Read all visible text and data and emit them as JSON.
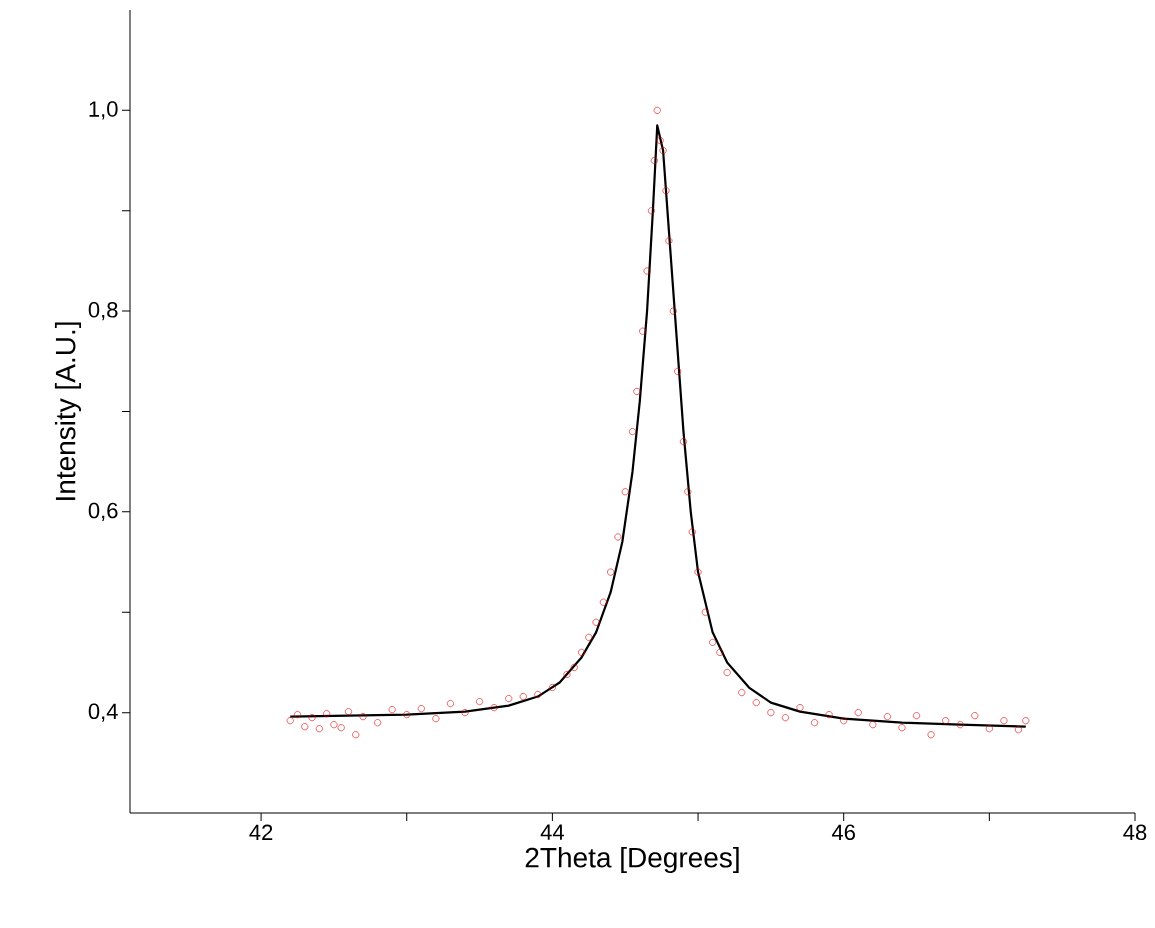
{
  "chart_data": {
    "type": "scatter",
    "xlabel": "2Theta [Degrees]",
    "ylabel": "Intensity [A.U.]",
    "xlim": [
      41.1,
      48
    ],
    "ylim": [
      0.3,
      1.1
    ],
    "xticks": [
      42,
      {
        "value": 43,
        "label": null
      },
      44,
      {
        "value": 45,
        "label": null
      },
      46,
      {
        "value": 47,
        "label": null
      },
      48
    ],
    "yticks": [
      {
        "value": 0.4,
        "label": "0,4"
      },
      {
        "value": 0.5,
        "label": null
      },
      {
        "value": 0.6,
        "label": "0,6"
      },
      {
        "value": 0.7,
        "label": null
      },
      {
        "value": 0.8,
        "label": "0,8"
      },
      {
        "value": 0.9,
        "label": null
      },
      {
        "value": 1.0,
        "label": "1,0"
      }
    ],
    "series": [
      {
        "marker": "circle",
        "color": "#e00000",
        "x": [
          42.2,
          42.25,
          42.3,
          42.35,
          42.4,
          42.45,
          42.5,
          42.55,
          42.6,
          42.65,
          42.7,
          42.8,
          42.9,
          43.0,
          43.1,
          43.2,
          43.3,
          43.4,
          43.5,
          43.6,
          43.7,
          43.8,
          43.9,
          44.0,
          44.1,
          44.15,
          44.2,
          44.25,
          44.3,
          44.35,
          44.4,
          44.45,
          44.5,
          44.55,
          44.58,
          44.62,
          44.65,
          44.68,
          44.7,
          44.72,
          44.74,
          44.76,
          44.78,
          44.8,
          44.83,
          44.86,
          44.9,
          44.93,
          44.96,
          45.0,
          45.05,
          45.1,
          45.15,
          45.2,
          45.3,
          45.4,
          45.5,
          45.6,
          45.7,
          45.8,
          45.9,
          46.0,
          46.1,
          46.2,
          46.3,
          46.4,
          46.5,
          46.6,
          46.7,
          46.8,
          46.9,
          47.0,
          47.1,
          47.2,
          47.25
        ],
        "values": [
          0.392,
          0.398,
          0.386,
          0.395,
          0.384,
          0.399,
          0.388,
          0.385,
          0.401,
          0.378,
          0.396,
          0.39,
          0.403,
          0.398,
          0.404,
          0.394,
          0.409,
          0.4,
          0.411,
          0.405,
          0.414,
          0.416,
          0.418,
          0.425,
          0.438,
          0.445,
          0.46,
          0.475,
          0.49,
          0.51,
          0.54,
          0.575,
          0.62,
          0.68,
          0.72,
          0.78,
          0.84,
          0.9,
          0.95,
          1.0,
          0.97,
          0.96,
          0.92,
          0.87,
          0.8,
          0.74,
          0.67,
          0.62,
          0.58,
          0.54,
          0.5,
          0.47,
          0.46,
          0.44,
          0.42,
          0.41,
          0.4,
          0.395,
          0.405,
          0.39,
          0.398,
          0.392,
          0.4,
          0.388,
          0.396,
          0.385,
          0.397,
          0.378,
          0.392,
          0.388,
          0.397,
          0.384,
          0.392,
          0.383,
          0.392
        ]
      },
      {
        "type": "line",
        "marker": "none",
        "line_style": "solid",
        "color": "#000000",
        "x": [
          42.2,
          42.6,
          43.0,
          43.4,
          43.7,
          43.9,
          44.05,
          44.2,
          44.3,
          44.4,
          44.48,
          44.55,
          44.6,
          44.65,
          44.69,
          44.72,
          44.76,
          44.8,
          44.85,
          44.9,
          44.95,
          45.0,
          45.1,
          45.2,
          45.35,
          45.5,
          45.7,
          46.0,
          46.4,
          46.8,
          47.25
        ],
        "values": [
          0.396,
          0.397,
          0.398,
          0.401,
          0.407,
          0.416,
          0.43,
          0.455,
          0.48,
          0.52,
          0.57,
          0.64,
          0.71,
          0.8,
          0.9,
          0.985,
          0.96,
          0.88,
          0.78,
          0.68,
          0.6,
          0.54,
          0.48,
          0.45,
          0.425,
          0.41,
          0.401,
          0.394,
          0.39,
          0.388,
          0.386
        ]
      }
    ]
  }
}
